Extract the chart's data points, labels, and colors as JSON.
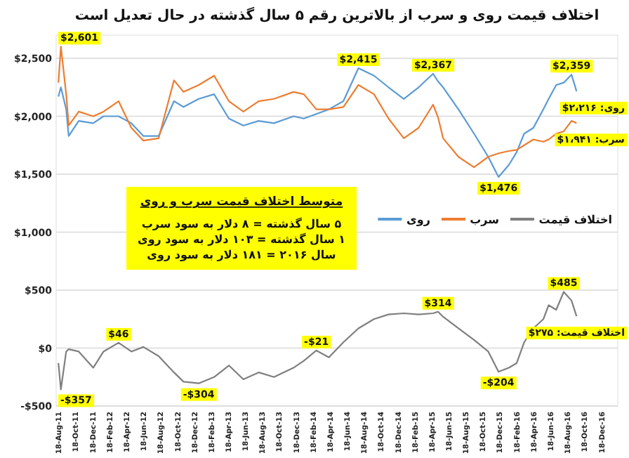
{
  "chart_data": {
    "type": "line",
    "title": "اختلاف قیمت روی و سرب از بالاترین رقم ۵ سال گذشته در حال تعدیل است",
    "x": [
      "2011-08-18",
      "2011-08-27",
      "2011-09-15",
      "2011-09-24",
      "2011-10-30",
      "2011-12-21",
      "2012-01-27",
      "2012-03-21",
      "2012-05-06",
      "2012-06-18",
      "2012-08-12",
      "2012-10-06",
      "2012-11-09",
      "2013-01-03",
      "2013-02-27",
      "2013-04-21",
      "2013-06-12",
      "2013-08-06",
      "2013-09-30",
      "2013-12-09",
      "2014-01-15",
      "2014-03-01",
      "2014-04-15",
      "2014-06-06",
      "2014-07-30",
      "2014-09-24",
      "2014-11-15",
      "2015-01-09",
      "2015-03-03",
      "2015-04-24",
      "2015-05-12",
      "2015-05-30",
      "2015-07-24",
      "2015-09-18",
      "2015-11-08",
      "2015-12-15",
      "2016-01-21",
      "2016-02-18",
      "2016-03-16",
      "2016-04-18",
      "2016-05-24",
      "2016-06-12",
      "2016-07-09",
      "2016-08-05",
      "2016-09-02",
      "2016-09-20"
    ],
    "series": [
      {
        "name": "روی",
        "color": "#5b9bd5",
        "values": [
          2170,
          2250,
          2060,
          1830,
          1960,
          1940,
          2000,
          2000,
          1940,
          1830,
          1830,
          2130,
          2080,
          2150,
          2190,
          1980,
          1920,
          1960,
          1940,
          2000,
          1980,
          2020,
          2060,
          2130,
          2415,
          2350,
          2250,
          2150,
          2250,
          2367,
          2300,
          2250,
          2060,
          1850,
          1650,
          1476,
          1580,
          1690,
          1850,
          1900,
          2060,
          2150,
          2270,
          2290,
          2359,
          2216
        ]
      },
      {
        "name": "سرب",
        "color": "#ed7d31",
        "values": [
          2290,
          2601,
          2190,
          1920,
          2040,
          2000,
          2040,
          2130,
          1900,
          1790,
          1810,
          2310,
          2210,
          2270,
          2350,
          2130,
          2040,
          2130,
          2150,
          2210,
          2190,
          2060,
          2060,
          2080,
          2270,
          2190,
          1980,
          1810,
          1900,
          2100,
          1990,
          1810,
          1650,
          1560,
          1650,
          1680,
          1700,
          1710,
          1750,
          1800,
          1780,
          1800,
          1850,
          1870,
          1960,
          1941
        ]
      },
      {
        "name": "اختلاف قیمت",
        "color": "#7f7f7f",
        "values": [
          -130,
          -357,
          -30,
          -10,
          -30,
          -170,
          -30,
          46,
          -30,
          10,
          -70,
          -210,
          -290,
          -304,
          -250,
          -150,
          -270,
          -210,
          -250,
          -170,
          -110,
          -21,
          -80,
          50,
          170,
          250,
          290,
          300,
          290,
          300,
          314,
          270,
          170,
          70,
          -30,
          -204,
          -170,
          -130,
          50,
          170,
          250,
          370,
          330,
          485,
          410,
          275
        ]
      }
    ],
    "xlim": [
      "2011-08-10",
      "2017-02-15"
    ],
    "xticks": [
      {
        "value": "2011-08-18",
        "label": "18-Aug-11"
      },
      {
        "value": "2011-10-18",
        "label": "18-Oct-11"
      },
      {
        "value": "2011-12-18",
        "label": "18-Dec-11"
      },
      {
        "value": "2012-02-18",
        "label": "18-Feb-12"
      },
      {
        "value": "2012-04-18",
        "label": "18-Apr-12"
      },
      {
        "value": "2012-06-18",
        "label": "18-Jun-12"
      },
      {
        "value": "2012-08-18",
        "label": "18-Aug-12"
      },
      {
        "value": "2012-10-18",
        "label": "18-Oct-12"
      },
      {
        "value": "2012-12-18",
        "label": "18-Dec-12"
      },
      {
        "value": "2013-02-18",
        "label": "18-Feb-13"
      },
      {
        "value": "2013-04-18",
        "label": "18-Apr-13"
      },
      {
        "value": "2013-06-18",
        "label": "18-Jun-13"
      },
      {
        "value": "2013-08-18",
        "label": "18-Aug-13"
      },
      {
        "value": "2013-10-18",
        "label": "18-Oct-13"
      },
      {
        "value": "2013-12-18",
        "label": "18-Dec-13"
      },
      {
        "value": "2014-02-18",
        "label": "18-Feb-14"
      },
      {
        "value": "2014-04-18",
        "label": "18-Apr-14"
      },
      {
        "value": "2014-06-18",
        "label": "18-Jun-14"
      },
      {
        "value": "2014-08-18",
        "label": "18-Aug-14"
      },
      {
        "value": "2014-10-18",
        "label": "18-Oct-14"
      },
      {
        "value": "2014-12-18",
        "label": "18-Dec-14"
      },
      {
        "value": "2015-02-18",
        "label": "18-Feb-15"
      },
      {
        "value": "2015-04-18",
        "label": "18-Apr-15"
      },
      {
        "value": "2015-06-18",
        "label": "18-Jun-15"
      },
      {
        "value": "2015-08-18",
        "label": "18-Aug-15"
      },
      {
        "value": "2015-10-18",
        "label": "18-Oct-15"
      },
      {
        "value": "2015-12-18",
        "label": "18-Dec-15"
      },
      {
        "value": "2016-02-18",
        "label": "18-Feb-16"
      },
      {
        "value": "2016-04-18",
        "label": "18-Apr-16"
      },
      {
        "value": "2016-06-18",
        "label": "18-Jun-16"
      },
      {
        "value": "2016-08-18",
        "label": "18-Aug-16"
      },
      {
        "value": "2016-10-18",
        "label": "18-Oct-16"
      },
      {
        "value": "2016-12-18",
        "label": "18-Dec-16"
      }
    ],
    "ylim": [
      -500,
      2700
    ],
    "yticks": [
      {
        "value": -500,
        "label": "-$500"
      },
      {
        "value": 0,
        "label": "$0"
      },
      {
        "value": 500,
        "label": "$500"
      },
      {
        "value": 1000,
        "label": "$1,000"
      },
      {
        "value": 1500,
        "label": "$1,500"
      },
      {
        "value": 2000,
        "label": "$2,000"
      },
      {
        "value": 2500,
        "label": "$2,500"
      }
    ],
    "grid": "y",
    "legend": "right",
    "annotations": [
      "متوسط اختلاف قیمت سرب و روی",
      "۵ سال گذشته = ۸ دلار به سود سرب",
      "۱ سال گذشته = ۱۰۳ دلار به سود روی",
      "سال ۲۰۱۶ = ۱۸۱ دلار به سود روی",
      {
        "text": "$2,601",
        "x": "2011-08-27",
        "y": 2601
      },
      {
        "text": "$2,415",
        "x": "2014-07-30",
        "y": 2415
      },
      {
        "text": "$2,367",
        "x": "2015-04-24",
        "y": 2367
      },
      {
        "text": "$1,476",
        "x": "2015-12-15",
        "y": 1476
      },
      {
        "text": "$2,359",
        "x": "2016-09-02",
        "y": 2359
      },
      {
        "text": "روی: ۲،۲۱۶$",
        "x": "2016-09-20",
        "y": 2216
      },
      {
        "text": "سرب: ۱،۹۴۱$",
        "x": "2016-09-20",
        "y": 1941
      },
      {
        "text": "اختلاف قیمت: ۲۷۵$",
        "x": "2016-09-20",
        "y": 275
      },
      {
        "text": "-$357",
        "x": "2011-08-27",
        "y": -357
      },
      {
        "text": "$46",
        "x": "2012-03-21",
        "y": 46
      },
      {
        "text": "-$304",
        "x": "2013-01-03",
        "y": -304
      },
      {
        "text": "-$21",
        "x": "2014-03-01",
        "y": -21
      },
      {
        "text": "$314",
        "x": "2015-05-12",
        "y": 314
      },
      {
        "text": "-$204",
        "x": "2015-12-15",
        "y": -204
      },
      {
        "text": "$485",
        "x": "2016-08-05",
        "y": 485
      }
    ]
  }
}
